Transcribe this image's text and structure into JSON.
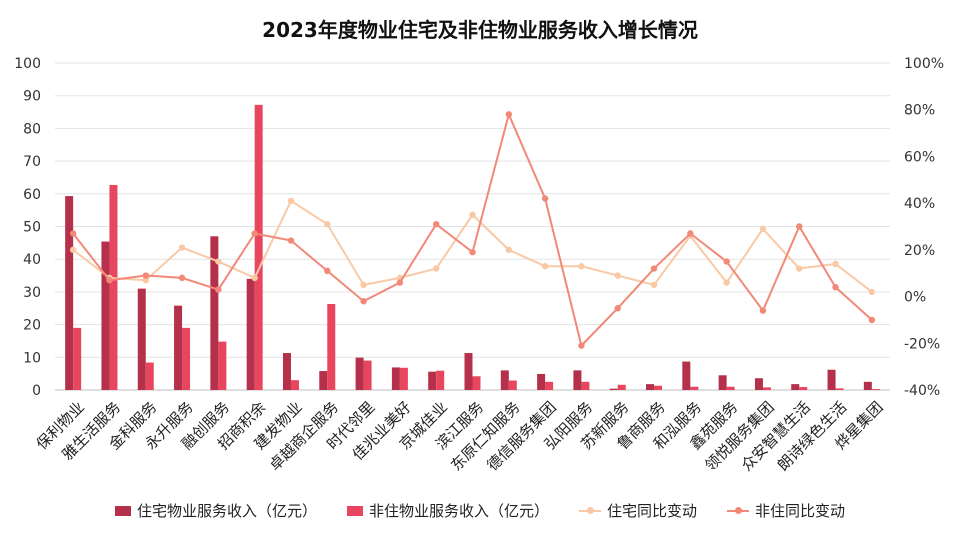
{
  "chart_data": {
    "type": "bar",
    "title": "2023年度物业住宅及非住物业服务收入增长情况",
    "categories": [
      "保利物业",
      "雅生活服务",
      "金科服务",
      "永升服务",
      "融创服务",
      "招商积余",
      "建发物业",
      "卓越商企服务",
      "时代邻里",
      "佳兆业美好",
      "京城佳业",
      "滨江服务",
      "东原仁知服务",
      "德信服务集团",
      "弘阳服务",
      "苏新服务",
      "鲁商服务",
      "和泓服务",
      "鑫苑服务",
      "领悦服务集团",
      "众安智慧生活",
      "朗诗绿色生活",
      "烨星集团"
    ],
    "y_left": {
      "min": 0,
      "max": 100,
      "ticks": [
        "0",
        "10",
        "20",
        "30",
        "40",
        "50",
        "60",
        "70",
        "80",
        "90",
        "100"
      ]
    },
    "y_right": {
      "min": -40,
      "max": 100,
      "ticks": [
        "-40%",
        "-20%",
        "0%",
        "20%",
        "40%",
        "60%",
        "80%",
        "100%"
      ]
    },
    "series": [
      {
        "name": "住宅物业服务收入（亿元）",
        "kind": "bar",
        "axis": "left",
        "color": "#b5304a",
        "values": [
          59.3,
          45.4,
          31.0,
          25.8,
          47.0,
          34.0,
          11.3,
          5.8,
          9.9,
          6.9,
          5.6,
          11.3,
          6.0,
          4.9,
          6.0,
          0.4,
          1.8,
          8.7,
          4.5,
          3.6,
          1.8,
          6.2,
          2.5
        ]
      },
      {
        "name": "非住物业服务收入（亿元）",
        "kind": "bar",
        "axis": "left",
        "color": "#e8465e",
        "values": [
          19.0,
          62.7,
          8.4,
          19.0,
          14.8,
          87.2,
          3.0,
          26.3,
          9.0,
          6.8,
          5.9,
          4.2,
          2.9,
          2.5,
          2.5,
          1.6,
          1.3,
          1.0,
          1.0,
          0.8,
          0.9,
          0.5,
          0.3
        ]
      },
      {
        "name": "住宅同比变动",
        "kind": "line",
        "axis": "right",
        "color": "#f9c9a6",
        "values": [
          20,
          8,
          7,
          21,
          15,
          8,
          41,
          31,
          5,
          8,
          12,
          35,
          20,
          13,
          13,
          9,
          5,
          26,
          6,
          29,
          12,
          14,
          2
        ]
      },
      {
        "name": "非住同比变动",
        "kind": "line",
        "axis": "right",
        "color": "#f28878",
        "values": [
          27,
          7,
          9,
          8,
          3,
          27,
          24,
          11,
          -2,
          6,
          31,
          19,
          78,
          42,
          -21,
          -5,
          12,
          27,
          15,
          -6,
          30,
          4,
          -10
        ]
      }
    ]
  }
}
